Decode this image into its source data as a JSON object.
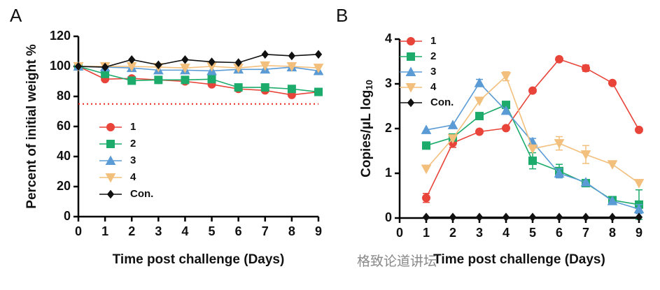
{
  "chart_data": [
    {
      "type": "line",
      "panel": "A",
      "ylabel": "Percent of initial weight %",
      "xlabel": "Time post challenge (Days)",
      "x": [
        0,
        1,
        2,
        3,
        4,
        5,
        6,
        7,
        8,
        9
      ],
      "xlim": [
        0,
        9
      ],
      "xticks": [
        0,
        1,
        2,
        3,
        4,
        5,
        6,
        7,
        8,
        9
      ],
      "ylim": [
        0,
        120
      ],
      "yticks": [
        0,
        20,
        40,
        60,
        80,
        100,
        120
      ],
      "hline": 75,
      "hline_color": "#e8251f",
      "legend": "lower left",
      "series": [
        {
          "name": "1",
          "color": "#e8443a",
          "marker": "circle",
          "values": [
            100,
            91.5,
            92,
            91,
            90,
            88,
            85,
            84,
            81,
            83
          ]
        },
        {
          "name": "2",
          "color": "#1dab6b",
          "marker": "square",
          "values": [
            100,
            95,
            90.5,
            91,
            91,
            91.5,
            86,
            86,
            85,
            83
          ]
        },
        {
          "name": "3",
          "color": "#5b9bd5",
          "marker": "triangle-up",
          "values": [
            100,
            99.5,
            99,
            97.5,
            97.5,
            97,
            98,
            98,
            99.5,
            97
          ]
        },
        {
          "name": "4",
          "color": "#f2bf7c",
          "marker": "triangle-down",
          "values": [
            100,
            100,
            100,
            99.5,
            99,
            100,
            99,
            100.5,
            100,
            99
          ]
        },
        {
          "name": "Con.",
          "color": "#111111",
          "marker": "diamond",
          "values": [
            100,
            99.5,
            104.5,
            101,
            104.5,
            103,
            102.5,
            108,
            107,
            108
          ]
        }
      ]
    },
    {
      "type": "line",
      "panel": "B",
      "ylabel": "Copies/μL log",
      "ylabel_sub": "10",
      "xlabel": "Time post challenge (Days)",
      "x": [
        1,
        2,
        3,
        4,
        5,
        6,
        7,
        8,
        9
      ],
      "xlim": [
        0,
        9
      ],
      "xticks": [
        0,
        1,
        2,
        3,
        4,
        5,
        6,
        7,
        8,
        9
      ],
      "ylim": [
        0,
        4
      ],
      "yticks": [
        0,
        1,
        2,
        3,
        4
      ],
      "legend": "upper left",
      "series": [
        {
          "name": "1",
          "color": "#e8443a",
          "marker": "circle",
          "values": [
            0.45,
            1.68,
            1.93,
            2.01,
            2.85,
            3.55,
            3.35,
            3.02,
            1.97
          ],
          "errors": [
            0.1,
            0.1,
            0,
            0,
            0,
            0,
            0.07,
            0,
            0
          ]
        },
        {
          "name": "2",
          "color": "#1dab6b",
          "marker": "square",
          "values": [
            1.62,
            1.8,
            2.28,
            2.53,
            1.28,
            1.05,
            0.78,
            0.4,
            0.3
          ],
          "errors": [
            0,
            0,
            0.07,
            0,
            0.18,
            0.15,
            0.06,
            0,
            0.33
          ]
        },
        {
          "name": "3",
          "color": "#5b9bd5",
          "marker": "triangle-up",
          "values": [
            1.97,
            2.08,
            3.02,
            2.4,
            1.7,
            1.0,
            0.8,
            0.38,
            0.2
          ],
          "errors": [
            0,
            0,
            0.08,
            0,
            0.08,
            0.1,
            0,
            0,
            0.1
          ]
        },
        {
          "name": "4",
          "color": "#f2bf7c",
          "marker": "triangle-down",
          "values": [
            1.1,
            1.78,
            2.62,
            3.17,
            1.55,
            1.67,
            1.42,
            1.2,
            0.78
          ],
          "errors": [
            0,
            0,
            0,
            0.1,
            0,
            0.15,
            0.2,
            0,
            0
          ]
        },
        {
          "name": "Con.",
          "color": "#111111",
          "marker": "diamond",
          "values": [
            0.02,
            0.02,
            0.02,
            0.02,
            0.02,
            0.02,
            0.02,
            0.02,
            0.02
          ],
          "errors": [
            0,
            0,
            0,
            0,
            0,
            0,
            0,
            0,
            0
          ]
        }
      ]
    }
  ],
  "watermark": "格致论道讲坛"
}
